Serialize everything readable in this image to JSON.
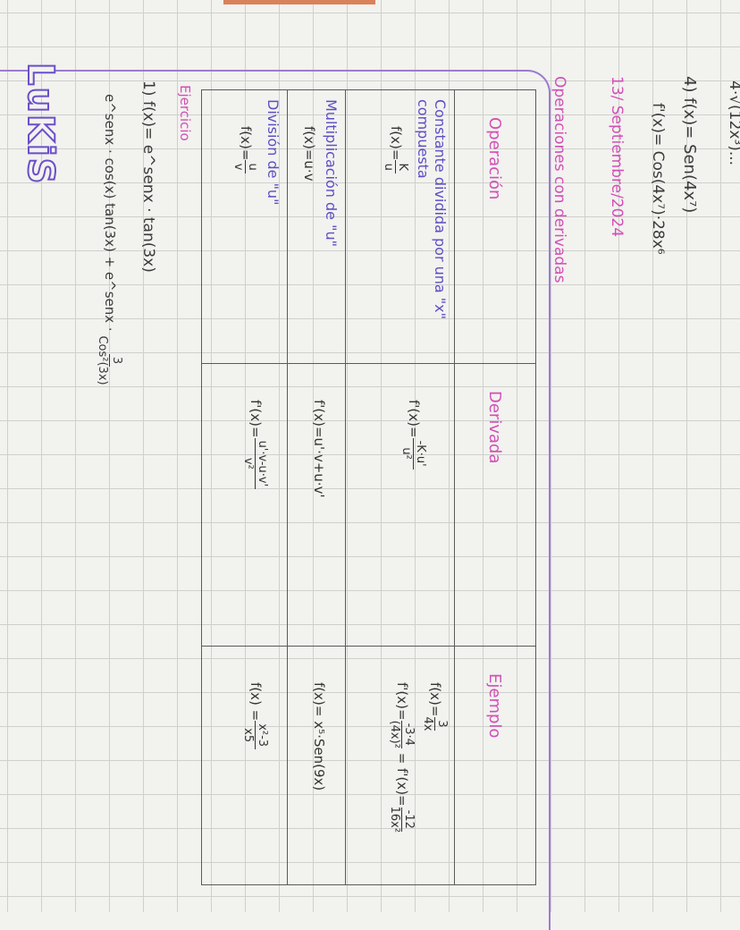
{
  "notes": {
    "top_partial": "4·√(12x³)...",
    "problem4": "4) f(x)= Sen(4x⁷)",
    "problem4_derivative": "f'(x)= Cos(4x⁷)·28x⁶",
    "date": "13/ Septiembre/2024",
    "topic": "Operaciones con derivadas"
  },
  "table": {
    "headers": [
      "Operación",
      "Derivada",
      "Ejemplo"
    ],
    "rows": [
      {
        "title": "Constante dividida por una \"x\" compuesta",
        "func_lhs": "f(x)=",
        "func_num": "K",
        "func_den": "u",
        "deriv_lhs": "f'(x)=",
        "deriv_num": "-K·u'",
        "deriv_den": "u²",
        "example_lhs": "f(x)=",
        "example_num": "3",
        "example_den": "4x",
        "example2_lhs": "f'(x)=",
        "example2_num": "-3·4",
        "example2_den": "(4x)²",
        "example2_mid": "= f'(x)=",
        "example2_num2": "-12",
        "example2_den2": "16x²"
      },
      {
        "title": "Multiplicación de \"u\"",
        "func": "f(x)=u·v",
        "deriv": "f'(x)=u'·v+u·v'",
        "example": "f(x)= x⁵·Sen(9x)"
      },
      {
        "title": "División de \"u\"",
        "func_lhs": "f(x)=",
        "func_num": "u",
        "func_den": "v",
        "deriv_lhs": "f'(x)=",
        "deriv_num": "u'·v-u·v'",
        "deriv_den": "v²",
        "example_lhs": "f(x) =",
        "example_num": "x²-3",
        "example_den": "x5"
      }
    ]
  },
  "exercise": {
    "heading": "Ejercicio",
    "problem": "1) f(x)= e^senx · tan(3x)",
    "solution_a": "e^senx · cos(x) tan(3x) + e^senx ·",
    "solution_num": "3",
    "solution_den": "Cos²(3x)"
  },
  "logo": "LuKiS",
  "colors": {
    "pink": "#d24fb6",
    "purple": "#5b4fc4",
    "ink": "#3a3a3a",
    "paper": "#f2f2ef"
  }
}
